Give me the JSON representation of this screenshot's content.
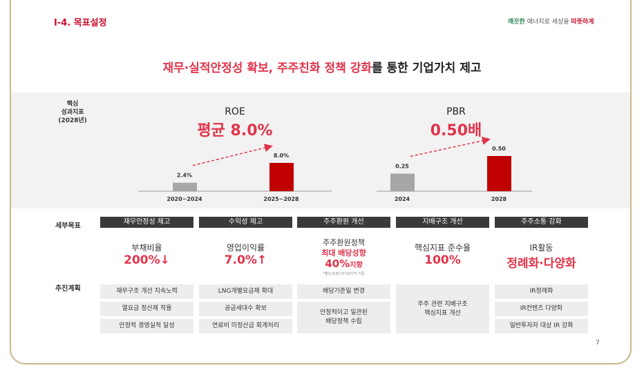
{
  "header": {
    "title": "I-4. 목표설정",
    "brand_a": "깨끗한",
    "brand_b": "에너지로 세상을",
    "brand_c": "따뜻하게"
  },
  "headline": {
    "highlight": "재무·실적안정성 확보, 주주친화 정책 강화",
    "rest": "를 통한 기업가치 제고"
  },
  "kpi": {
    "label": [
      "핵심",
      "성과지표",
      "(2028년)"
    ]
  },
  "charts": [
    {
      "type": "bar",
      "name": "ROE",
      "headline": "평균 8.0%",
      "categories": [
        "2020~2024",
        "2025~2028"
      ],
      "values": [
        2.4,
        8.0
      ],
      "value_labels": [
        "2.4%",
        "8.0%"
      ],
      "colors": [
        "#a6a6a6",
        "#c00000"
      ]
    },
    {
      "type": "bar",
      "name": "PBR",
      "headline": "0.50배",
      "categories": [
        "2024",
        "2028"
      ],
      "values": [
        0.25,
        0.5
      ],
      "value_labels": [
        "0.25",
        "0.50"
      ],
      "colors": [
        "#a6a6a6",
        "#c00000"
      ]
    }
  ],
  "detail": {
    "label": "세부목표",
    "goals": [
      {
        "header": "재무안정성 제고",
        "metric": "부채비율",
        "target": "200%↓"
      },
      {
        "header": "수익성 제고",
        "metric": "영업이익률",
        "target": "7.0%↑"
      },
      {
        "header": "주주환원 개선",
        "metric": "주주환원정책",
        "subtitle": "최대 배당성향",
        "target": "40%",
        "target_suffix": "지향",
        "note": "*별도(조정) 당기순이익 기준"
      },
      {
        "header": "지배구조 개선",
        "metric": "핵심지표 준수율",
        "target": "100%"
      },
      {
        "header": "주주소통 강화",
        "metric": "IR활동",
        "target": "정례화·다양화"
      }
    ]
  },
  "plan": {
    "label": "추진계획",
    "columns": [
      [
        "재무구조 개선 지속노력",
        "열요금 정산제 적용",
        "안정적 경영실적 달성"
      ],
      [
        "LNG개별요금제 확대",
        "공급세대수 확보",
        "연료비 미정산금 회계처리"
      ],
      [
        "배당기준일 변경",
        "안정적이고 일관된\n배당정책 수립"
      ],
      [
        "주주 관련 지배구조\n핵심지표 개선"
      ],
      [
        "IR정례화",
        "IR컨텐츠 다양화",
        "일반투자자 대상 IR 강화"
      ]
    ]
  },
  "page_number": "7"
}
